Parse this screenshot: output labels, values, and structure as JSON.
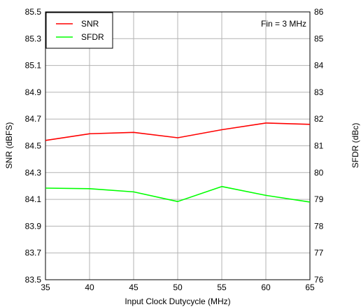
{
  "chart_data": {
    "type": "line",
    "xlabel": "Input Clock Dutycycle (MHz)",
    "ylabel_left": "SNR (dBFS)",
    "ylabel_right": "SFDR (dBc)",
    "xlim": [
      35,
      65
    ],
    "ylim_left": [
      83.5,
      85.5
    ],
    "ylim_right": [
      76,
      86
    ],
    "x_ticks": [
      "35",
      "40",
      "45",
      "50",
      "55",
      "60",
      "65"
    ],
    "y_ticks_left": [
      "85.5",
      "85.3",
      "85.1",
      "84.9",
      "84.7",
      "84.5",
      "84.3",
      "84.1",
      "83.9",
      "83.7",
      "83.5"
    ],
    "y_ticks_right": [
      "86",
      "85",
      "84",
      "83",
      "82",
      "81",
      "80",
      "79",
      "78",
      "77",
      "76"
    ],
    "grid": true,
    "legend_position": "top-left",
    "annotation": "Fin = 3 MHz",
    "series": [
      {
        "name": "SNR",
        "axis": "left",
        "color": "#ff0000",
        "x": [
          35,
          40,
          45,
          50,
          55,
          60,
          65
        ],
        "values": [
          84.54,
          84.59,
          84.6,
          84.56,
          84.62,
          84.67,
          84.66
        ]
      },
      {
        "name": "SFDR",
        "axis": "right",
        "color": "#00ff00",
        "x": [
          35,
          40,
          45,
          50,
          55,
          60,
          65
        ],
        "values": [
          79.42,
          79.4,
          79.28,
          78.92,
          79.48,
          79.15,
          78.9
        ]
      }
    ]
  }
}
